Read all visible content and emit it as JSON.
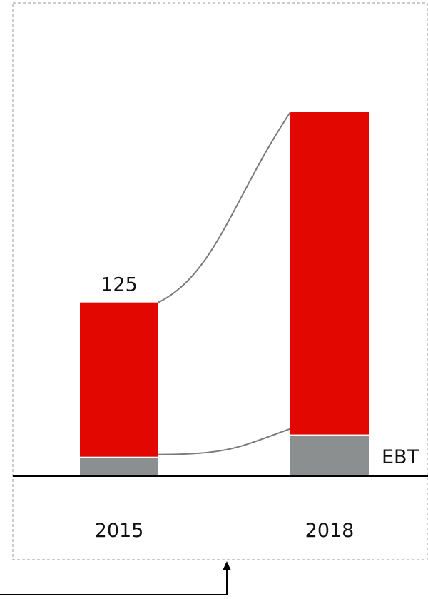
{
  "chart_data": {
    "type": "bar",
    "stacked": true,
    "categories": [
      "2015",
      "2018"
    ],
    "series": [
      {
        "values": [
          13,
          29
        ],
        "color": "#8c8f90"
      },
      {
        "values": [
          112,
          233
        ],
        "color": "#e20700"
      }
    ],
    "totals": [
      125,
      262
    ],
    "data_labels": {
      "2015": "125"
    },
    "series_labels": [
      "EBT"
    ],
    "ylim": [
      0,
      262
    ],
    "grid": false,
    "legend": "none",
    "connectors": true
  }
}
